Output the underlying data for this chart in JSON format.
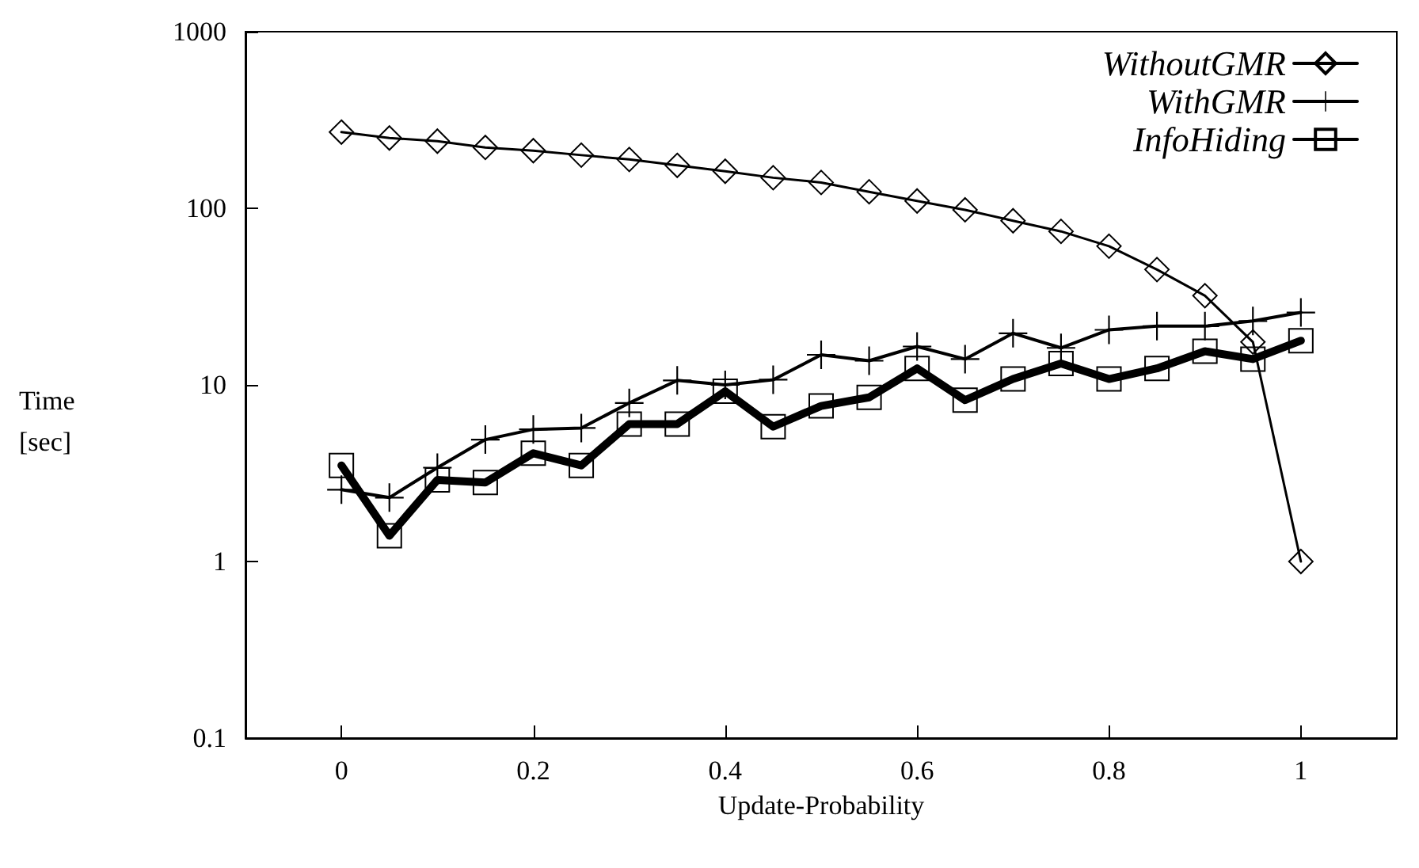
{
  "chart_data": {
    "type": "line",
    "xlabel": "Update-Probability",
    "ylabel": "Time\n[sec]",
    "x": [
      0,
      0.05,
      0.1,
      0.15,
      0.2,
      0.25,
      0.3,
      0.35,
      0.4,
      0.45,
      0.5,
      0.55,
      0.6,
      0.65,
      0.7,
      0.75,
      0.8,
      0.85,
      0.9,
      0.95,
      1
    ],
    "series": [
      {
        "name": "WithoutGMR",
        "color": "#000000",
        "marker": "diamond",
        "values": [
          270,
          250,
          240,
          221,
          212,
          200,
          189,
          175,
          162,
          149,
          140,
          124,
          110,
          98,
          85,
          74,
          61,
          45,
          32,
          17.5,
          1.0
        ]
      },
      {
        "name": "WithGMR",
        "color": "#000000",
        "marker": "cross",
        "values": [
          2.55,
          2.3,
          3.4,
          4.9,
          5.6,
          5.7,
          7.9,
          10.6,
          10,
          10.7,
          14.8,
          13.7,
          16.5,
          14,
          19.6,
          16.2,
          20.5,
          21.5,
          21.5,
          23,
          25.7
        ]
      },
      {
        "name": "InfoHiding",
        "color": "#000000",
        "marker": "square",
        "values": [
          3.5,
          1.4,
          2.9,
          2.8,
          4.1,
          3.5,
          6.0,
          6.0,
          9.2,
          5.8,
          7.6,
          8.5,
          12.4,
          8.2,
          10.8,
          13.2,
          10.8,
          12.4,
          15.5,
          14,
          17.8
        ]
      }
    ],
    "xlim": [
      -0.1,
      1.1
    ],
    "xticks": [
      0,
      0.2,
      0.4,
      0.6,
      0.8,
      1
    ],
    "ylim": [
      0.1,
      1000
    ],
    "yticks": [
      0.1,
      1,
      10,
      100,
      1000
    ],
    "log": true,
    "grid": false,
    "legend": "top right",
    "line_style": "solid"
  }
}
